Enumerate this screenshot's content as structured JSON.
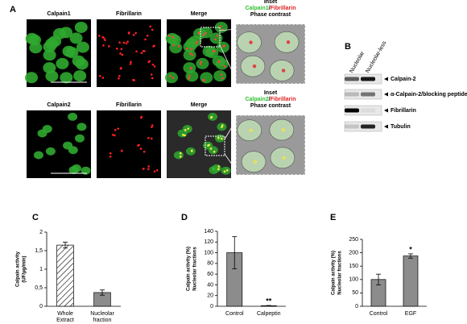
{
  "panel_a": {
    "label": "A",
    "rows": [
      {
        "channels": [
          "Calpain1",
          "Fibrillarin",
          "Merge"
        ],
        "inset_title": "Inset",
        "inset_channels": [
          "Calpain1",
          "/",
          "Fibrillarin"
        ],
        "inset_subtitle": "Phase contrast"
      },
      {
        "channels": [
          "Calpain2",
          "Fibrillarin",
          "Merge"
        ],
        "inset_title": "Inset",
        "inset_channels": [
          "Calpain2",
          "/",
          "Fibrillarin"
        ],
        "inset_subtitle": "Phase contrast"
      }
    ]
  },
  "panel_b": {
    "label": "B",
    "lanes": [
      "Nucleolar",
      "Nucleolar-less"
    ],
    "bands": [
      "Calpain-2",
      "α-Calpain-2/blocking peptide",
      "Fibrillarin",
      "Tubulin"
    ]
  },
  "chart_data": [
    {
      "type": "bar",
      "panel": "C",
      "ylabel": [
        "Calpain activity",
        "(UF/µg/min)"
      ],
      "categories": [
        [
          "Whole",
          "Extract"
        ],
        [
          "Nucleolar",
          "fraction"
        ]
      ],
      "values": [
        1.65,
        0.37
      ],
      "errors": [
        0.08,
        0.07
      ],
      "colors": [
        "#ffffff",
        "#8c8c8c"
      ],
      "hatch": [
        true,
        false
      ],
      "ylim": [
        0,
        2
      ],
      "yticks": [
        0,
        {
          "value": 0.5,
          "label": "0,5"
        },
        1,
        {
          "value": 1.5,
          "label": "1,5"
        },
        2
      ]
    },
    {
      "type": "bar",
      "panel": "D",
      "ylabel": [
        "Calpain activity (%)",
        "Nucleolar fractions"
      ],
      "categories": [
        [
          "Control"
        ],
        [
          "Calpeptin"
        ]
      ],
      "values": [
        100,
        1
      ],
      "errors": [
        30,
        0.5
      ],
      "colors": [
        "#8c8c8c",
        "#8c8c8c"
      ],
      "hatch": [
        false,
        false
      ],
      "annotations": [
        null,
        "**"
      ],
      "ylim": [
        0,
        140
      ],
      "yticks": [
        0,
        20,
        40,
        60,
        80,
        100,
        120,
        140
      ]
    },
    {
      "type": "bar",
      "panel": "E",
      "ylabel": [
        "Calpain activity (%)",
        "Nucleolar fractions"
      ],
      "categories": [
        [
          "Control"
        ],
        [
          "EGF"
        ]
      ],
      "values": [
        100,
        188
      ],
      "errors": [
        20,
        8
      ],
      "colors": [
        "#8c8c8c",
        "#8c8c8c"
      ],
      "hatch": [
        false,
        false
      ],
      "annotations": [
        null,
        "*"
      ],
      "ylim": [
        0,
        250
      ],
      "yticks": [
        0,
        50,
        100,
        150,
        200,
        250
      ]
    }
  ]
}
